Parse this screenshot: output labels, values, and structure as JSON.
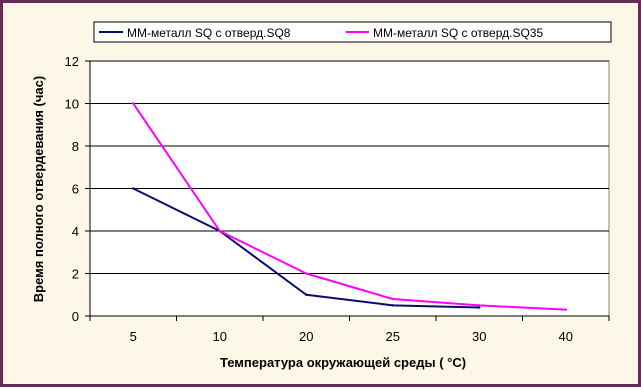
{
  "chart_data": {
    "type": "line",
    "title": "",
    "xlabel": "Температура окружающей среды  ( °C)",
    "ylabel": "Время полного отвердевания (час)",
    "categories": [
      "5",
      "10",
      "20",
      "25",
      "30",
      "40"
    ],
    "ylim": [
      0,
      12
    ],
    "yticks": [
      0,
      2,
      4,
      6,
      8,
      10,
      12
    ],
    "grid": "horizontal",
    "legend": "top",
    "series": [
      {
        "name": "ММ-металл SQ с отверд.SQ8",
        "color": "#0b0b6e",
        "values": [
          6,
          4,
          1,
          0.5,
          0.4,
          null
        ]
      },
      {
        "name": "ММ-металл SQ с отверд.SQ35",
        "color": "#ff00ff",
        "values": [
          10,
          4,
          2,
          0.8,
          0.5,
          0.3
        ]
      }
    ]
  }
}
